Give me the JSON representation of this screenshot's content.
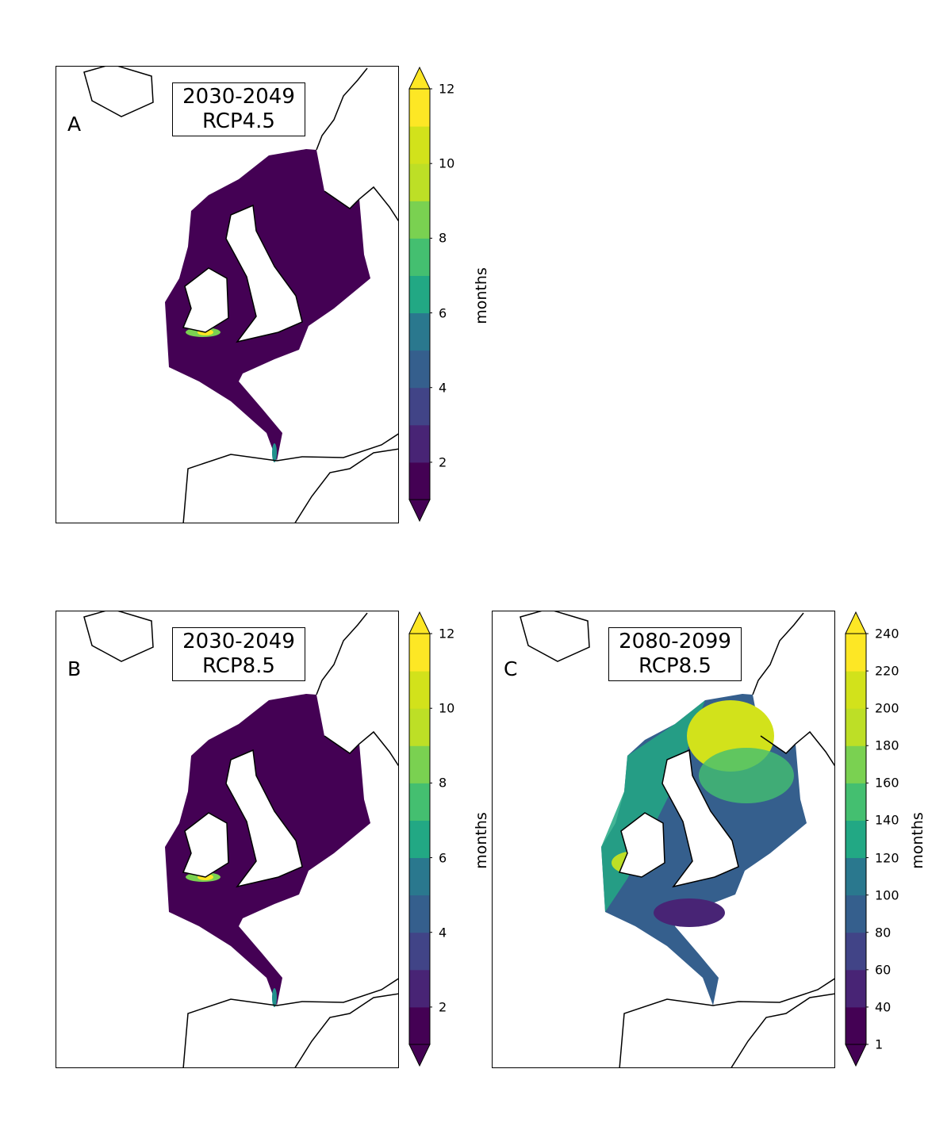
{
  "panels": [
    {
      "id": "A",
      "label": "A",
      "title_line1": "2030-2049",
      "title_line2": "RCP4.5",
      "scenario": "low",
      "colorbar": {
        "label": "months",
        "ticks": [
          "2",
          "4",
          "6",
          "8",
          "10",
          "12"
        ],
        "levels": [
          1,
          2,
          3,
          4,
          5,
          6,
          7,
          8,
          9,
          10,
          11,
          12
        ],
        "extend": "both"
      }
    },
    {
      "id": "B",
      "label": "B",
      "title_line1": "2030-2049",
      "title_line2": "RCP8.5",
      "scenario": "low",
      "colorbar": {
        "label": "months",
        "ticks": [
          "2",
          "4",
          "6",
          "8",
          "10",
          "12"
        ],
        "levels": [
          1,
          2,
          3,
          4,
          5,
          6,
          7,
          8,
          9,
          10,
          11,
          12
        ],
        "extend": "both"
      }
    },
    {
      "id": "C",
      "label": "C",
      "title_line1": "2080-2099",
      "title_line2": "RCP8.5",
      "scenario": "high",
      "colorbar": {
        "label": "months",
        "ticks": [
          "1",
          "40",
          "60",
          "80",
          "100",
          "120",
          "140",
          "160",
          "180",
          "200",
          "220",
          "240"
        ],
        "levels": [
          1,
          20,
          40,
          60,
          80,
          100,
          120,
          140,
          160,
          180,
          200,
          220,
          240
        ],
        "extend": "both"
      }
    }
  ],
  "colormap": "viridis",
  "colors": [
    "#440154",
    "#482475",
    "#414487",
    "#355f8d",
    "#2a788e",
    "#21918c",
    "#22a884",
    "#44bf70",
    "#7ad151",
    "#bddf26",
    "#d2e21b",
    "#fde725"
  ],
  "land_color": "#ffffff",
  "coast_color": "#000000"
}
